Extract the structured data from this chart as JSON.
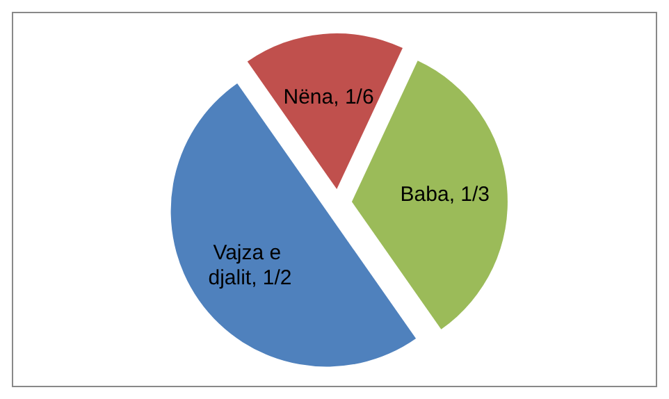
{
  "chart_data": {
    "type": "pie",
    "categories": [
      "Nëna",
      "Baba",
      "Vajza e djalit"
    ],
    "values": [
      0.1667,
      0.3333,
      0.5
    ],
    "value_labels": [
      "1/6",
      "1/3",
      "1/2"
    ],
    "colors": [
      "#c0504d",
      "#9bbb59",
      "#4f81bd"
    ]
  }
}
